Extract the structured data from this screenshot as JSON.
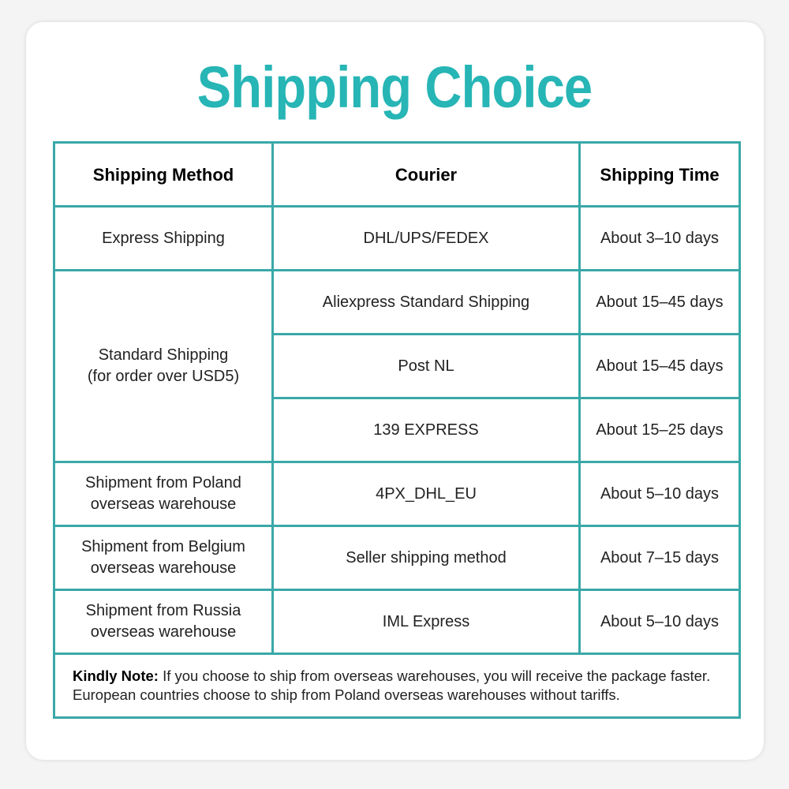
{
  "title": "Shipping Choice",
  "colors": {
    "accent": "#27b5b5",
    "border": "#3aa8a8"
  },
  "table": {
    "headers": [
      "Shipping Method",
      "Courier",
      "Shipping Time"
    ],
    "rows": [
      {
        "method": "Express Shipping",
        "courier": "DHL/UPS/FEDEX",
        "time": "About 3–10 days"
      },
      {
        "method": "Standard Shipping",
        "method_sub": "(for order over USD5)",
        "courier": "Aliexpress Standard Shipping",
        "time": "About 15–45 days"
      },
      {
        "courier": "Post NL",
        "time": "About 15–45 days"
      },
      {
        "courier": "139 EXPRESS",
        "time": "About 15–25 days"
      },
      {
        "method": "Shipment from Poland",
        "method_sub": "overseas warehouse",
        "courier": "4PX_DHL_EU",
        "time": "About 5–10 days"
      },
      {
        "method": "Shipment from Belgium",
        "method_sub": "overseas warehouse",
        "courier": "Seller shipping method",
        "time": "About 7–15 days"
      },
      {
        "method": "Shipment from Russia",
        "method_sub": "overseas warehouse",
        "courier": "IML Express",
        "time": "About 5–10 days"
      }
    ]
  },
  "note": {
    "label": "Kindly Note:",
    "text": " If you choose to ship from overseas warehouses, you will receive the package faster. European countries choose to ship from Poland overseas warehouses without tariffs."
  }
}
